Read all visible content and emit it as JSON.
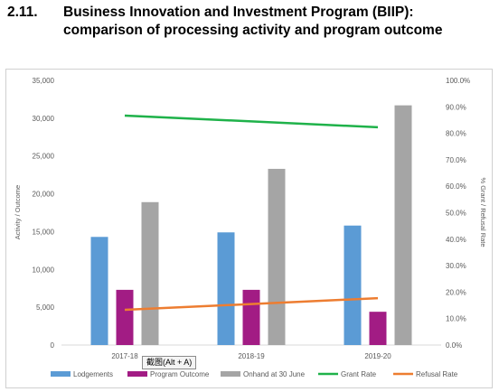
{
  "heading": {
    "number": "2.11.",
    "line1": "Business Innovation and Investment Program (BIIP):",
    "line2": "comparison of processing activity and program outcome"
  },
  "tooltip": "截图(Alt + A)",
  "chart_data": {
    "type": "bar",
    "title": "",
    "categories": [
      "2017-18",
      "2018-19",
      "2019-20"
    ],
    "ylabel": "Activity / Outcome",
    "y2label": "% Grant / Refusal Rate",
    "ylim": [
      0,
      35000
    ],
    "y2lim": [
      0,
      1.0
    ],
    "y_ticks": [
      "0",
      "5,000",
      "10,000",
      "15,000",
      "20,000",
      "25,000",
      "30,000",
      "35,000"
    ],
    "y2_ticks": [
      "0.0%",
      "10.0%",
      "20.0%",
      "30.0%",
      "40.0%",
      "50.0%",
      "60.0%",
      "70.0%",
      "80.0%",
      "90.0%",
      "100.0%"
    ],
    "grid": false,
    "legend_position": "bottom",
    "series": [
      {
        "name": "Lodgements",
        "kind": "bar",
        "axis": "left",
        "color": "#5b9bd5",
        "values": [
          14300,
          14900,
          15800
        ]
      },
      {
        "name": "Program Outcome",
        "kind": "bar",
        "axis": "left",
        "color": "#a21c84",
        "values": [
          7300,
          7300,
          4400
        ]
      },
      {
        "name": "Onhand at 30 June",
        "kind": "bar",
        "axis": "left",
        "color": "#a5a5a5",
        "values": [
          18900,
          23300,
          31700
        ]
      },
      {
        "name": "Grant Rate",
        "kind": "line",
        "axis": "right",
        "color": "#1fb24a",
        "values": [
          0.867,
          0.845,
          0.823
        ]
      },
      {
        "name": "Refusal Rate",
        "kind": "line",
        "axis": "right",
        "color": "#ed7d31",
        "values": [
          0.133,
          0.155,
          0.177
        ]
      }
    ]
  }
}
